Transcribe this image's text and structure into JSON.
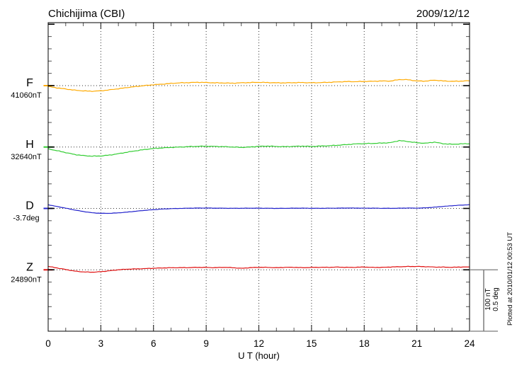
{
  "header": {
    "title": "Chichijima (CBI)",
    "date": "2009/12/12"
  },
  "xaxis": {
    "label": "U T (hour)",
    "ticks": [
      0,
      3,
      6,
      9,
      12,
      15,
      18,
      21,
      24
    ],
    "min": 0,
    "max": 24
  },
  "channels": [
    {
      "id": "F",
      "label": "F",
      "value_label": "41060nT",
      "color": "#FFAA00",
      "unit": "nT"
    },
    {
      "id": "H",
      "label": "H",
      "value_label": "32640nT",
      "color": "#32CD32",
      "unit": "nT"
    },
    {
      "id": "D",
      "label": "D",
      "value_label": "-3.7deg",
      "color": "#2222CC",
      "unit": "deg"
    },
    {
      "id": "Z",
      "label": "Z",
      "value_label": "24890nT",
      "color": "#E01010",
      "unit": "nT"
    }
  ],
  "scale_bar": {
    "label_nt": "100 nT",
    "label_deg": "0.5 deg",
    "nT": 100,
    "deg": 0.5
  },
  "footer_note": "Plotted at 2010/01/12 00:53 UT",
  "chart_data": {
    "type": "line",
    "title": "Chichijima (CBI) magnetogram 2009/12/12",
    "xlabel": "U T (hour)",
    "x_range": [
      0,
      24
    ],
    "x_step_hours": 0.5,
    "grid": "dotted vertical every 3 hours, dotted horizontal baseline per channel",
    "scale_bar": {
      "nT_per_division_bar": 100,
      "deg_per_division_bar": 0.5
    },
    "series": [
      {
        "name": "F",
        "unit": "nT",
        "baseline": 41060,
        "color": "#FFAA00",
        "offsets": [
          -1.5,
          -3.5,
          -5.5,
          -7.5,
          -8.5,
          -9,
          -8.5,
          -7,
          -5,
          -3,
          -1.5,
          0,
          1.5,
          2.5,
          3.5,
          4.5,
          5,
          5.5,
          5,
          4.5,
          4.5,
          4,
          4.5,
          5,
          5.5,
          5,
          4.5,
          4.5,
          5,
          5,
          4.5,
          5,
          5.5,
          6,
          6.5,
          6.5,
          7,
          7,
          7.5,
          7.5,
          10,
          9.5,
          7.5,
          7.5,
          9,
          7.5,
          7,
          7.5,
          8
        ]
      },
      {
        "name": "H",
        "unit": "nT",
        "baseline": 32640,
        "color": "#32CD32",
        "offsets": [
          -3,
          -6,
          -9,
          -12,
          -14,
          -15,
          -14.5,
          -13,
          -11,
          -8.5,
          -6,
          -4,
          -2.5,
          -1.5,
          -0.5,
          0,
          0.5,
          1,
          1.5,
          1,
          0.5,
          0,
          -0.5,
          0,
          1,
          1.5,
          1,
          0.5,
          1,
          1.5,
          1,
          1.5,
          2,
          3,
          4,
          5,
          5.5,
          6,
          6.5,
          7,
          10.5,
          9,
          7,
          6,
          8,
          5.5,
          4.5,
          5,
          5.5
        ]
      },
      {
        "name": "D",
        "unit": "deg",
        "baseline": -3.7,
        "color": "#2222CC",
        "offsets": [
          0.03,
          0.016,
          0.002,
          -0.013,
          -0.025,
          -0.035,
          -0.04,
          -0.04,
          -0.036,
          -0.03,
          -0.023,
          -0.016,
          -0.01,
          -0.005,
          -0.002,
          0,
          0.002,
          0.003,
          0.003,
          0.002,
          0.002,
          0.001,
          0.001,
          0.002,
          0.002,
          0.001,
          0,
          0.001,
          0.002,
          0.002,
          0.001,
          0.001,
          0.002,
          0.002,
          0.003,
          0.003,
          0.002,
          0.002,
          0.001,
          0.001,
          0.002,
          0.003,
          0.002,
          0.005,
          0.01,
          0.016,
          0.022,
          0.027,
          0.03
        ]
      },
      {
        "name": "Z",
        "unit": "nT",
        "baseline": 24890,
        "color": "#E01010",
        "offsets": [
          5.5,
          3,
          0.5,
          -2,
          -3.5,
          -4,
          -3,
          -1.5,
          0,
          1,
          1.5,
          2,
          2.5,
          3,
          3.5,
          3.5,
          3.5,
          4,
          4,
          3.5,
          4,
          3.5,
          2.5,
          3.5,
          4,
          4,
          3.5,
          4,
          4,
          3.5,
          4,
          4,
          4,
          4.5,
          4,
          4,
          4.5,
          4,
          4,
          4.5,
          5,
          5.5,
          5.5,
          5,
          4.5,
          4.5,
          4,
          4.5,
          4.5
        ]
      }
    ]
  }
}
